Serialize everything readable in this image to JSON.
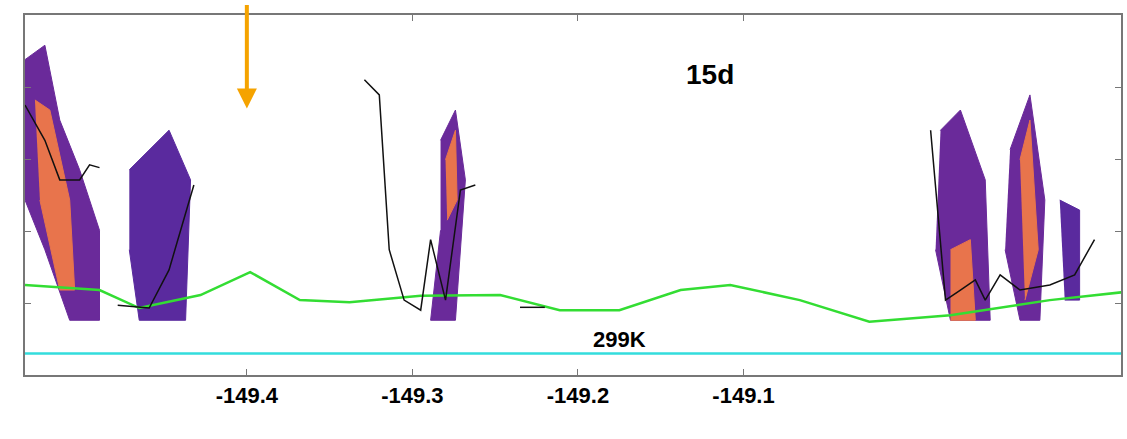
{
  "chart_data": {
    "type": "line",
    "xlim": [
      -149.534,
      -148.872
    ],
    "xticks": [
      -149.4,
      -149.3,
      -149.2,
      -149.1
    ],
    "ylim": [
      0,
      5
    ],
    "yticks": [
      1,
      2,
      3,
      4
    ],
    "tick_labels": "x",
    "grid": false,
    "annotations": [
      {
        "text": "15d",
        "x": -149.12,
        "y": 4.17
      },
      {
        "text": "299K",
        "x": -149.175,
        "y": 0.49
      }
    ],
    "markers": [
      {
        "x": -149.4,
        "color": "#f5a300"
      }
    ],
    "series": [
      {
        "type": "area",
        "color": "#6a2a9a",
        "x": [
          -149.534,
          -149.522,
          -149.513,
          -149.501,
          -149.489,
          -149.489,
          -149.507,
          -149.522,
          -149.534
        ],
        "values": [
          4.38,
          4.58,
          3.54,
          2.85,
          2.01,
          0.76,
          0.76,
          1.74,
          2.43
        ]
      },
      {
        "type": "area",
        "color": "#e8744c",
        "x": [
          -149.528,
          -149.519,
          -149.507,
          -149.504,
          -149.513,
          -149.525
        ],
        "values": [
          3.82,
          3.68,
          2.43,
          1.18,
          1.18,
          2.43
        ]
      },
      {
        "type": "area",
        "color": "#5a2a9e",
        "x": [
          -149.471,
          -149.447,
          -149.434,
          -149.437,
          -149.465,
          -149.471
        ],
        "values": [
          2.85,
          3.4,
          2.71,
          0.76,
          0.76,
          1.74
        ]
      },
      {
        "type": "area",
        "color": "#6a2a9a",
        "x": [
          -149.283,
          -149.274,
          -149.268,
          -149.274,
          -149.289,
          -149.283
        ],
        "values": [
          3.26,
          3.68,
          2.71,
          0.76,
          0.76,
          2.01
        ]
      },
      {
        "type": "area",
        "color": "#e8744c",
        "x": [
          -149.28,
          -149.274,
          -149.273,
          -149.279
        ],
        "values": [
          2.99,
          3.4,
          2.43,
          2.15
        ]
      },
      {
        "type": "area",
        "color": "#6a2a9a",
        "x": [
          -148.981,
          -148.969,
          -148.954,
          -148.951,
          -148.975,
          -148.984
        ],
        "values": [
          3.4,
          3.68,
          2.71,
          0.76,
          0.76,
          1.74
        ]
      },
      {
        "type": "area",
        "color": "#e8744c",
        "x": [
          -148.975,
          -148.963,
          -148.96,
          -148.975
        ],
        "values": [
          1.74,
          1.88,
          0.76,
          0.76
        ]
      },
      {
        "type": "area",
        "color": "#6a2a9a",
        "x": [
          -148.939,
          -148.927,
          -148.918,
          -148.921,
          -148.933,
          -148.942
        ],
        "values": [
          3.13,
          3.89,
          2.43,
          0.76,
          0.76,
          1.74
        ]
      },
      {
        "type": "area",
        "color": "#e8744c",
        "x": [
          -148.933,
          -148.927,
          -148.922,
          -148.93
        ],
        "values": [
          2.99,
          3.54,
          1.74,
          1.04
        ]
      },
      {
        "type": "area",
        "color": "#5a2a9e",
        "x": [
          -148.909,
          -148.897,
          -148.897,
          -148.906
        ],
        "values": [
          2.43,
          2.29,
          1.04,
          1.04
        ]
      },
      {
        "type": "line",
        "color": "#33dd33",
        "x": [
          -149.534,
          -149.489,
          -149.465,
          -149.428,
          -149.398,
          -149.368,
          -149.338,
          -149.295,
          -149.247,
          -149.211,
          -149.175,
          -149.138,
          -149.108,
          -149.066,
          -149.024,
          -148.975,
          -148.915,
          -148.871
        ],
        "values": [
          1.25,
          1.18,
          0.93,
          1.11,
          1.43,
          1.04,
          1.01,
          1.1,
          1.11,
          0.9,
          0.9,
          1.18,
          1.25,
          1.04,
          0.74,
          0.83,
          1.04,
          1.15
        ]
      },
      {
        "type": "line",
        "color": "#33dddd",
        "x": [
          -149.534,
          -148.872
        ],
        "values": [
          0.3,
          0.3
        ]
      },
      {
        "type": "line",
        "color": "#111111",
        "x": [
          -149.534,
          -149.522,
          -149.513,
          -149.501,
          -149.495,
          -149.489
        ],
        "values": [
          3.75,
          3.26,
          2.71,
          2.71,
          2.92,
          2.88
        ]
      },
      {
        "type": "line",
        "color": "#111111",
        "x": [
          -149.478,
          -149.459,
          -149.447,
          -149.432
        ],
        "values": [
          0.97,
          0.93,
          1.46,
          2.64
        ]
      },
      {
        "type": "line",
        "color": "#111111",
        "x": [
          -149.329,
          -149.32,
          -149.314,
          -149.305,
          -149.295,
          -149.289,
          -149.28,
          -149.271,
          -149.262
        ],
        "values": [
          4.1,
          3.89,
          1.74,
          1.04,
          0.9,
          1.88,
          1.04,
          2.57,
          2.64
        ]
      },
      {
        "type": "line",
        "color": "#111111",
        "x": [
          -149.235,
          -149.22
        ],
        "values": [
          0.94,
          0.94
        ]
      },
      {
        "type": "line",
        "color": "#111111",
        "x": [
          -148.987,
          -148.978,
          -148.969,
          -148.96,
          -148.954,
          -148.945,
          -148.933,
          -148.915,
          -148.9,
          -148.888
        ],
        "values": [
          3.4,
          1.04,
          1.18,
          1.32,
          1.04,
          1.39,
          1.18,
          1.25,
          1.39,
          1.88
        ]
      }
    ]
  }
}
